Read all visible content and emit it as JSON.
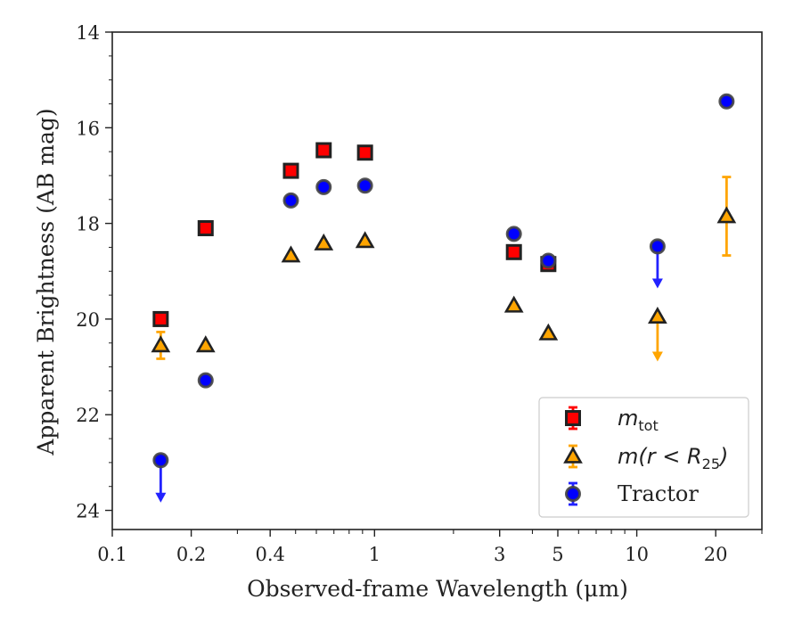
{
  "chart_data": {
    "type": "scatter",
    "xlabel": "Observed-frame Wavelength (μm)",
    "ylabel": "Apparent Brightness (AB mag)",
    "x_scale": "log",
    "y_inverted": true,
    "xlim": [
      0.1,
      30
    ],
    "ylim": [
      24.4,
      14
    ],
    "x_ticks": [
      {
        "value": 0.1,
        "label": "0.1"
      },
      {
        "value": 0.2,
        "label": "0.2"
      },
      {
        "value": 0.4,
        "label": "0.4"
      },
      {
        "value": 1,
        "label": "1"
      },
      {
        "value": 3,
        "label": "3"
      },
      {
        "value": 5,
        "label": "5"
      },
      {
        "value": 10,
        "label": "10"
      },
      {
        "value": 20,
        "label": "20"
      }
    ],
    "y_ticks": [
      {
        "value": 14,
        "label": "14"
      },
      {
        "value": 16,
        "label": "16"
      },
      {
        "value": 18,
        "label": "18"
      },
      {
        "value": 20,
        "label": "20"
      },
      {
        "value": 22,
        "label": "22"
      },
      {
        "value": 24,
        "label": "24"
      }
    ],
    "grid": false,
    "legend_position": "bottom-right",
    "series": [
      {
        "name": "m_tot",
        "label_main": "m",
        "label_sub": "tot",
        "marker": "square",
        "color": "#ff0000",
        "edge_color": "#222222",
        "error_color": "#ff0000",
        "points": [
          {
            "x": 0.153,
            "y": 20.0,
            "err": 0
          },
          {
            "x": 0.227,
            "y": 18.1,
            "err": 0
          },
          {
            "x": 0.48,
            "y": 16.9,
            "err": 0
          },
          {
            "x": 0.64,
            "y": 16.47,
            "err": 0
          },
          {
            "x": 0.92,
            "y": 16.52,
            "err": 0
          },
          {
            "x": 3.4,
            "y": 18.6,
            "err": 0
          },
          {
            "x": 4.6,
            "y": 18.85,
            "err": 0
          }
        ]
      },
      {
        "name": "m(r < R25)",
        "label_main": "m(r < R",
        "label_sub": "25",
        "label_tail": ")",
        "marker": "triangle",
        "color": "#ffa500",
        "edge_color": "#222222",
        "error_color": "#ffa500",
        "points": [
          {
            "x": 0.153,
            "y": 20.55,
            "err": 0.28
          },
          {
            "x": 0.227,
            "y": 20.55,
            "err": 0
          },
          {
            "x": 0.48,
            "y": 18.67,
            "err": 0
          },
          {
            "x": 0.64,
            "y": 18.42,
            "err": 0
          },
          {
            "x": 0.92,
            "y": 18.37,
            "err": 0
          },
          {
            "x": 3.4,
            "y": 19.72,
            "err": 0
          },
          {
            "x": 4.6,
            "y": 20.3,
            "err": 0
          },
          {
            "x": 12.0,
            "y": 19.95,
            "err": 0,
            "upper_limit": true,
            "arrow_to": 20.85
          },
          {
            "x": 22.0,
            "y": 17.85,
            "err": 0.82
          }
        ]
      },
      {
        "name": "Tractor",
        "label_main": "Tractor",
        "marker": "circle",
        "color": "#0000ff",
        "edge_color": "#444444",
        "error_color": "#2222ff",
        "points": [
          {
            "x": 0.153,
            "y": 22.95,
            "err": 0,
            "upper_limit": true,
            "arrow_to": 23.8
          },
          {
            "x": 0.227,
            "y": 21.28,
            "err": 0
          },
          {
            "x": 0.48,
            "y": 17.52,
            "err": 0
          },
          {
            "x": 0.64,
            "y": 17.24,
            "err": 0
          },
          {
            "x": 0.92,
            "y": 17.21,
            "err": 0
          },
          {
            "x": 3.4,
            "y": 18.22,
            "err": 0
          },
          {
            "x": 4.6,
            "y": 18.78,
            "err": 0
          },
          {
            "x": 12.0,
            "y": 18.48,
            "err": 0,
            "upper_limit": true,
            "arrow_to": 19.32
          },
          {
            "x": 22.0,
            "y": 15.45,
            "err": 0
          }
        ]
      }
    ]
  }
}
